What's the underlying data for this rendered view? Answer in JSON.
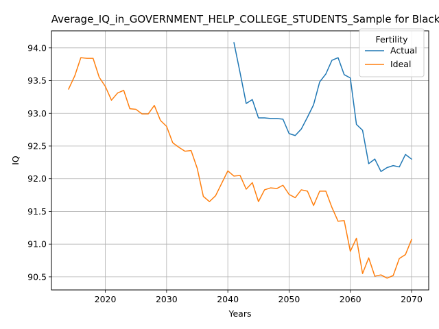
{
  "chart_data": {
    "type": "line",
    "title": "Average_IQ_in_GOVERNMENT_HELP_COLLEGE_STUDENTS_Sample for Black_I",
    "xlabel": "Years",
    "ylabel": "IQ",
    "xlim": [
      2011.2,
      2072.8
    ],
    "ylim": [
      90.3,
      94.26
    ],
    "xticks": [
      2020,
      2030,
      2040,
      2050,
      2060,
      2070
    ],
    "yticks": [
      90.5,
      91.0,
      91.5,
      92.0,
      92.5,
      93.0,
      93.5,
      94.0
    ],
    "xtick_labels": [
      "2020",
      "2030",
      "2040",
      "2050",
      "2060",
      "2070"
    ],
    "ytick_labels": [
      "90.5",
      "91.0",
      "91.5",
      "92.0",
      "92.5",
      "93.0",
      "93.5",
      "94.0"
    ],
    "grid": true,
    "legend": {
      "title": "Fertility",
      "placement": "top-right"
    },
    "series": [
      {
        "name": "Actual",
        "color": "#1f77b4",
        "x": [
          2041,
          2042,
          2043,
          2044,
          2045,
          2046,
          2047,
          2048,
          2049,
          2050,
          2051,
          2052,
          2053,
          2054,
          2055,
          2056,
          2057,
          2058,
          2059,
          2060,
          2061,
          2062,
          2063,
          2064,
          2065,
          2066,
          2067,
          2068,
          2069,
          2070
        ],
        "y": [
          94.08,
          93.62,
          93.15,
          93.21,
          92.93,
          92.93,
          92.92,
          92.92,
          92.91,
          92.69,
          92.66,
          92.76,
          92.94,
          93.13,
          93.48,
          93.6,
          93.81,
          93.85,
          93.59,
          93.54,
          92.83,
          92.74,
          92.23,
          92.3,
          92.11,
          92.17,
          92.2,
          92.18,
          92.37,
          92.3
        ]
      },
      {
        "name": "Ideal",
        "color": "#ff7f0e",
        "x": [
          2014,
          2015,
          2016,
          2017,
          2018,
          2019,
          2020,
          2021,
          2022,
          2023,
          2024,
          2025,
          2026,
          2027,
          2028,
          2029,
          2030,
          2031,
          2032,
          2033,
          2034,
          2035,
          2036,
          2037,
          2038,
          2039,
          2040,
          2041,
          2042,
          2043,
          2044,
          2045,
          2046,
          2047,
          2048,
          2049,
          2050,
          2051,
          2052,
          2053,
          2054,
          2055,
          2056,
          2057,
          2058,
          2059,
          2060,
          2061,
          2062,
          2063,
          2064,
          2065,
          2066,
          2067,
          2068,
          2069,
          2070
        ],
        "y": [
          93.37,
          93.57,
          93.85,
          93.84,
          93.84,
          93.55,
          93.41,
          93.2,
          93.31,
          93.35,
          93.07,
          93.06,
          92.99,
          92.99,
          93.12,
          92.89,
          92.8,
          92.55,
          92.48,
          92.42,
          92.43,
          92.16,
          91.73,
          91.65,
          91.74,
          91.93,
          92.12,
          92.04,
          92.05,
          91.84,
          91.94,
          91.65,
          91.83,
          91.86,
          91.85,
          91.9,
          91.76,
          91.71,
          91.83,
          91.81,
          91.59,
          91.81,
          91.81,
          91.56,
          91.35,
          91.36,
          90.89,
          91.09,
          90.55,
          90.79,
          90.51,
          90.53,
          90.48,
          90.52,
          90.78,
          90.84,
          91.07
        ]
      }
    ]
  }
}
